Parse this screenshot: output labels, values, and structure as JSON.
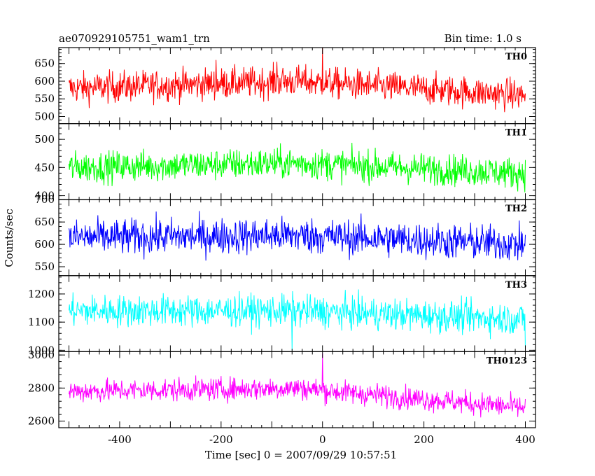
{
  "header": {
    "title": "ae070929105751_wam1_trn",
    "bin_time": "Bin time: 1.0 s"
  },
  "colors": {
    "TH0": "#ff0000",
    "TH1": "#00ff00",
    "TH2": "#0000ff",
    "TH3": "#00ffff",
    "TH0123": "#ff00ff"
  },
  "chart_data": {
    "type": "line",
    "xlabel": "Time [sec] 0 = 2007/09/29 10:57:51",
    "ylabel": "Counts/sec",
    "xlim": [
      -520,
      420
    ],
    "x_range": [
      -500,
      400
    ],
    "x_ticks": [
      -400,
      -200,
      0,
      200,
      400
    ],
    "grid": false,
    "panels": [
      {
        "name": "TH0",
        "ylim": [
          480,
          695
        ],
        "y_ticks": [
          500,
          550,
          600,
          650
        ],
        "mean_start": 580,
        "mean_mid": 600,
        "mean_end": 560,
        "noise": 35,
        "spikes": [
          {
            "x": 0,
            "y": 695
          },
          {
            "x": -210,
            "y": 660
          },
          {
            "x": -90,
            "y": 655
          }
        ]
      },
      {
        "name": "TH1",
        "ylim": [
          393,
          528
        ],
        "y_ticks": [
          400,
          450,
          500
        ],
        "mean_start": 450,
        "mean_mid": 458,
        "mean_end": 440,
        "noise": 22,
        "spikes": []
      },
      {
        "name": "TH2",
        "ylim": [
          530,
          700
        ],
        "y_ticks": [
          550,
          600,
          650,
          700
        ],
        "mean_start": 615,
        "mean_mid": 620,
        "mean_end": 600,
        "noise": 32,
        "spikes": []
      },
      {
        "name": "TH3",
        "ylim": [
          995,
          1265
        ],
        "y_ticks": [
          1000,
          1100,
          1200
        ],
        "mean_start": 1140,
        "mean_mid": 1140,
        "mean_end": 1110,
        "noise": 45,
        "spikes": [
          {
            "x": -60,
            "y": 1000
          },
          {
            "x": 400,
            "y": 1000
          }
        ]
      },
      {
        "name": "TH0123",
        "ylim": [
          2560,
          3020
        ],
        "y_ticks": [
          2600,
          2800,
          3000
        ],
        "mean_start": 2780,
        "mean_mid": 2800,
        "mean_end": 2680,
        "noise": 55,
        "spikes": [
          {
            "x": 0,
            "y": 3010
          }
        ]
      }
    ]
  }
}
